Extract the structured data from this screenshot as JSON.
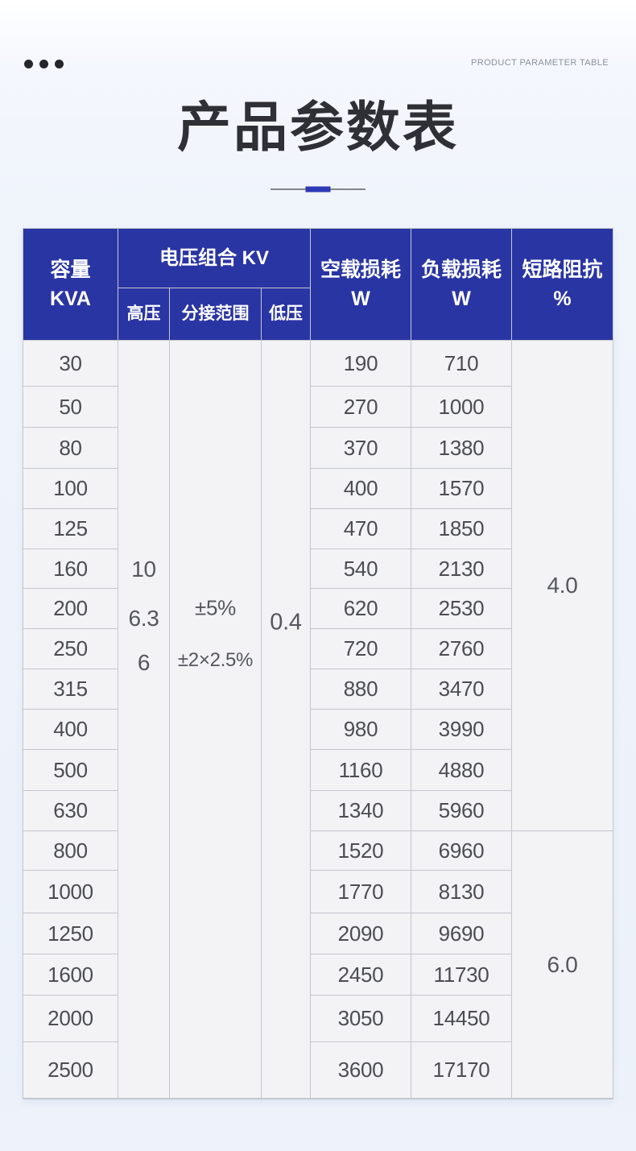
{
  "page": {
    "eyebrow": "PRODUCT PARAMETER TABLE",
    "title": "产品参数表"
  },
  "colors": {
    "header_bg": "#2a35a4",
    "accent_blue": "#2c38b4",
    "cell_bg": "#f3f3f5",
    "grid_line": "#c3c6cd"
  },
  "table": {
    "headers": {
      "capacity_line1": "容量",
      "capacity_line2": "KVA",
      "voltage_group": "电压组合 KV",
      "high_voltage": "高压",
      "tap_range": "分接范围",
      "low_voltage": "低压",
      "no_load_loss_line1": "空载损耗",
      "no_load_loss_line2": "W",
      "load_loss_line1": "负载损耗",
      "load_loss_line2": "W",
      "impedance_line1": "短路阻抗",
      "impedance_line2": "%"
    },
    "merged": {
      "high_voltage_values": [
        "10",
        "6.3",
        "6"
      ],
      "tap_range_values": [
        "±5%",
        "±2×2.5%"
      ],
      "low_voltage_value": "0.4",
      "impedance_groups": [
        {
          "value": "4.0",
          "row_span": 12
        },
        {
          "value": "6.0",
          "row_span": 6
        }
      ]
    },
    "rows": [
      {
        "capacity": "30",
        "no_load_loss": "190",
        "load_loss": "710"
      },
      {
        "capacity": "50",
        "no_load_loss": "270",
        "load_loss": "1000"
      },
      {
        "capacity": "80",
        "no_load_loss": "370",
        "load_loss": "1380"
      },
      {
        "capacity": "100",
        "no_load_loss": "400",
        "load_loss": "1570"
      },
      {
        "capacity": "125",
        "no_load_loss": "470",
        "load_loss": "1850"
      },
      {
        "capacity": "160",
        "no_load_loss": "540",
        "load_loss": "2130"
      },
      {
        "capacity": "200",
        "no_load_loss": "620",
        "load_loss": "2530"
      },
      {
        "capacity": "250",
        "no_load_loss": "720",
        "load_loss": "2760"
      },
      {
        "capacity": "315",
        "no_load_loss": "880",
        "load_loss": "3470"
      },
      {
        "capacity": "400",
        "no_load_loss": "980",
        "load_loss": "3990"
      },
      {
        "capacity": "500",
        "no_load_loss": "1160",
        "load_loss": "4880"
      },
      {
        "capacity": "630",
        "no_load_loss": "1340",
        "load_loss": "5960"
      },
      {
        "capacity": "800",
        "no_load_loss": "1520",
        "load_loss": "6960"
      },
      {
        "capacity": "1000",
        "no_load_loss": "1770",
        "load_loss": "8130"
      },
      {
        "capacity": "1250",
        "no_load_loss": "2090",
        "load_loss": "9690"
      },
      {
        "capacity": "1600",
        "no_load_loss": "2450",
        "load_loss": "11730"
      },
      {
        "capacity": "2000",
        "no_load_loss": "3050",
        "load_loss": "14450"
      },
      {
        "capacity": "2500",
        "no_load_loss": "3600",
        "load_loss": "17170"
      }
    ]
  }
}
